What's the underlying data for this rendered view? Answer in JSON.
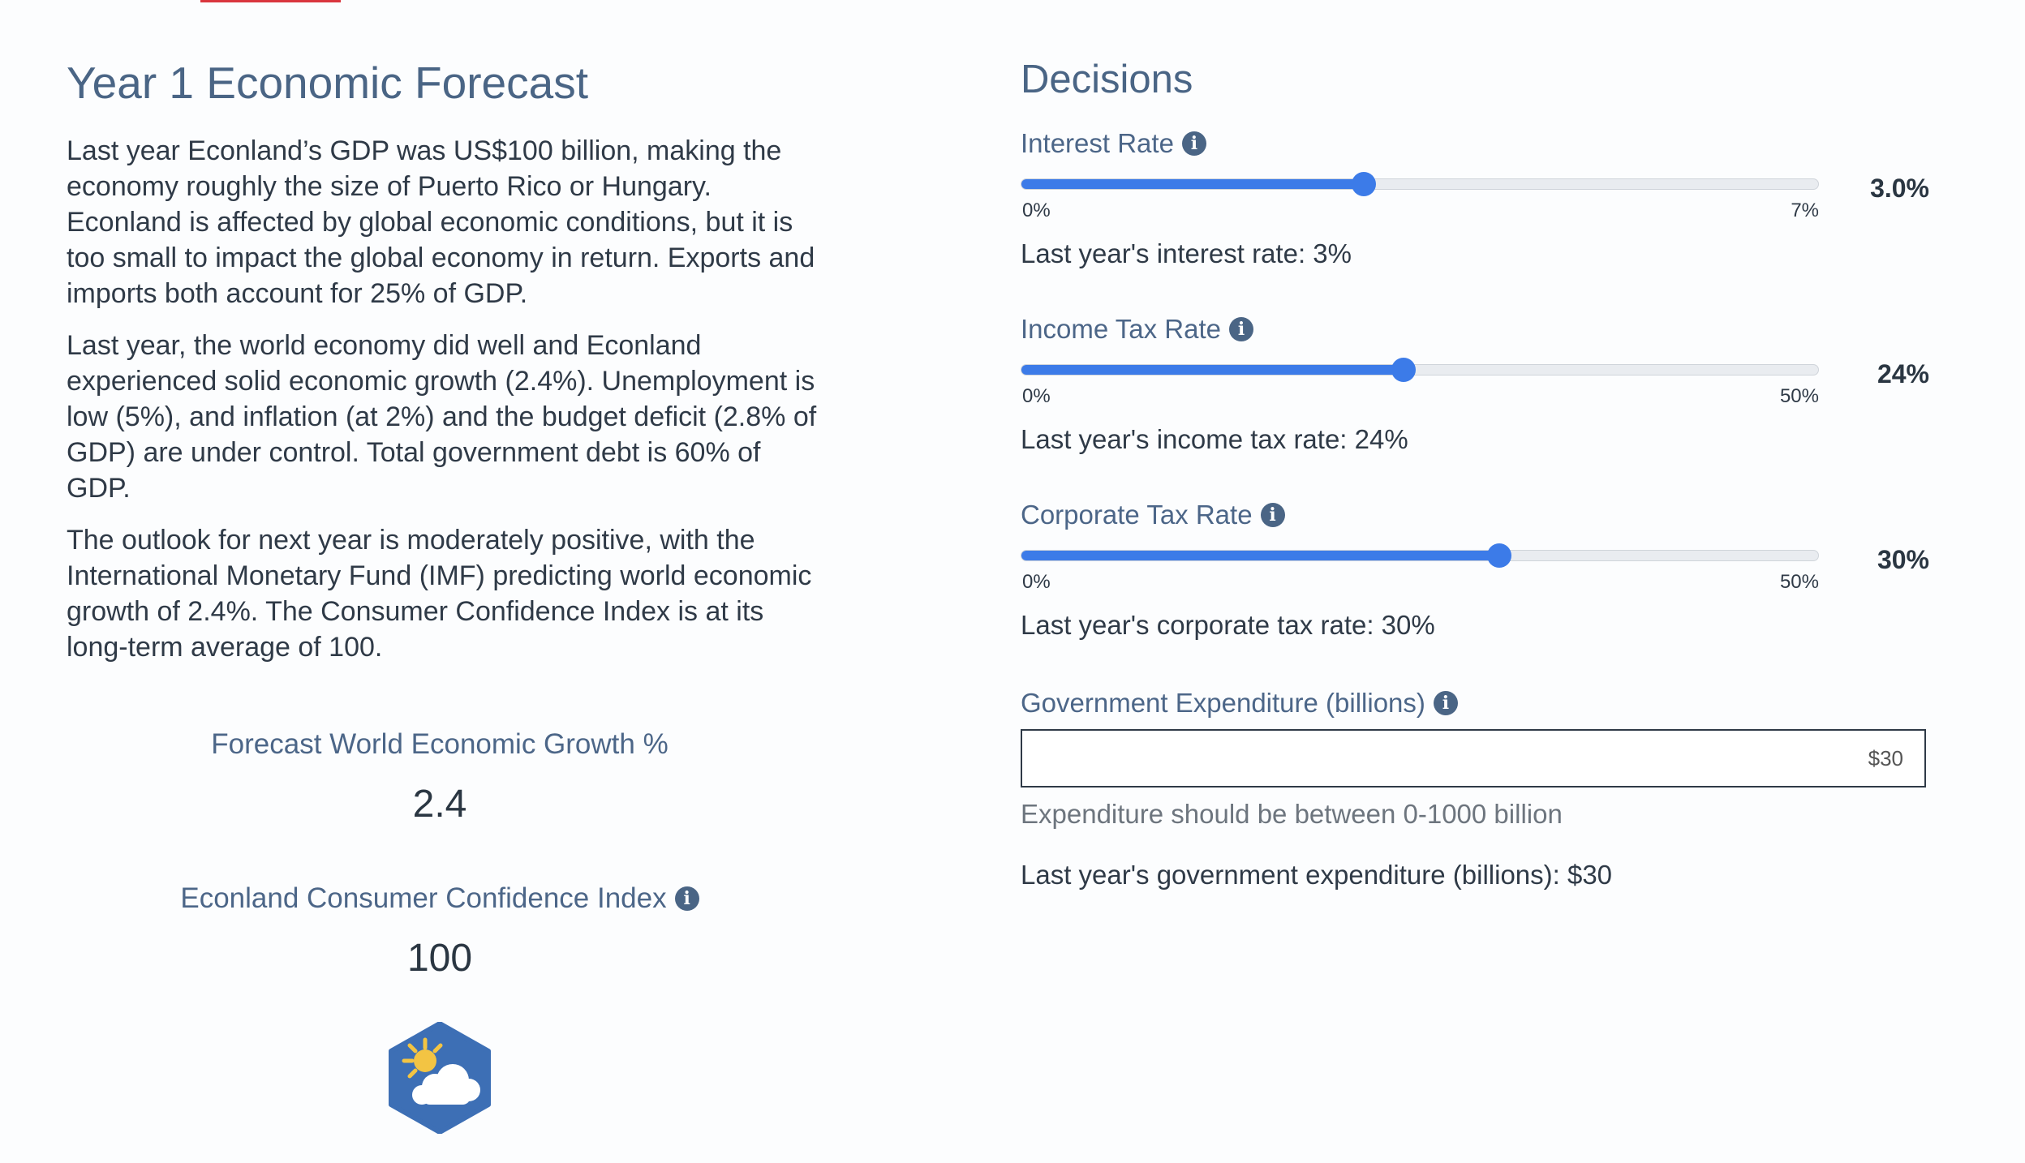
{
  "forecast": {
    "title": "Year 1 Economic Forecast",
    "paragraphs": [
      "Last year Econland’s GDP was US$100 billion, making the economy roughly the size of Puerto Rico or Hungary. Econland is affected by global economic conditions, but it is too small to impact the global economy in return. Exports and imports both account for 25% of GDP.",
      "Last year, the world economy did well and Econland experienced solid economic growth (2.4%). Unemployment is low (5%), and inflation (at 2%) and the budget deficit (2.8% of GDP) are under control. Total government debt is 60% of GDP.",
      "The outlook for next year is moderately positive, with the International Monetary Fund (IMF) predicting world economic growth of 2.4%. The Consumer Confidence Index is at its long-term average of 100."
    ],
    "world_growth": {
      "label": "Forecast World Economic Growth %",
      "value": "2.4"
    },
    "confidence": {
      "label": "Econland Consumer Confidence Index",
      "value": "100"
    },
    "weather_icon": "partly-cloudy-sun-icon"
  },
  "decisions": {
    "title": "Decisions",
    "sliders": [
      {
        "label": "Interest Rate",
        "min_label": "0%",
        "max_label": "7%",
        "value_label": "3.0%",
        "fraction": 0.43,
        "last_year": "Last year's interest rate: 3%"
      },
      {
        "label": "Income Tax Rate",
        "min_label": "0%",
        "max_label": "50%",
        "value_label": "24%",
        "fraction": 0.48,
        "last_year": "Last year's income tax rate: 24%"
      },
      {
        "label": "Corporate Tax Rate",
        "min_label": "0%",
        "max_label": "50%",
        "value_label": "30%",
        "fraction": 0.6,
        "last_year": "Last year's corporate tax rate: 30%"
      }
    ],
    "expenditure": {
      "label": "Government Expenditure (billions)",
      "value": "$30",
      "help": "Expenditure should be between 0-1000 billion",
      "last_year": "Last year's government expenditure (billions): $30"
    }
  },
  "colors": {
    "accent": "#3c7be8",
    "heading": "#4a6585",
    "top_bar": "#d9363e",
    "badge": "#3d6fb5",
    "sun": "#f3c443"
  }
}
